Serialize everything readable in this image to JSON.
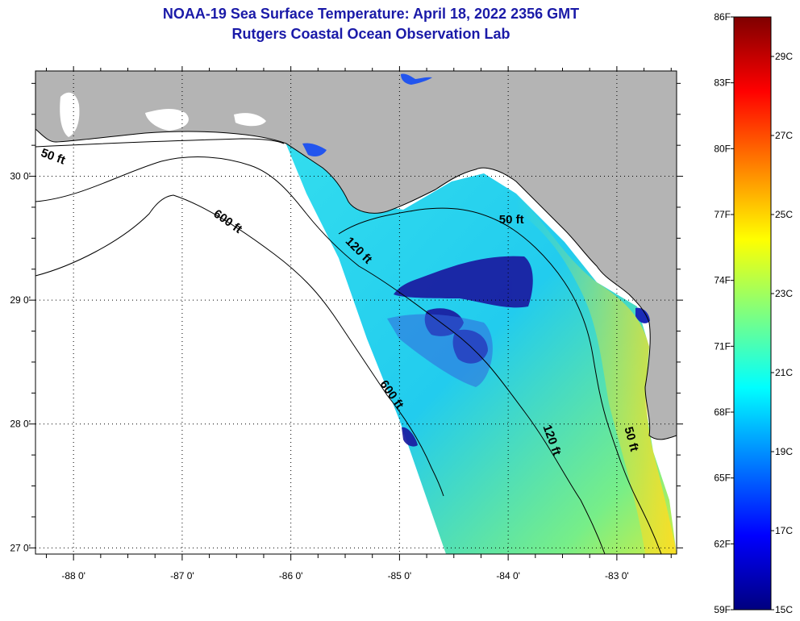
{
  "title": "NOAA-19 Sea Surface Temperature:  April 18, 2022 2356 GMT",
  "subtitle": "Rutgers Coastal Ocean Observation Lab",
  "map": {
    "lon_range": [
      -88.35,
      -82.45
    ],
    "lat_range": [
      26.95,
      30.85
    ],
    "lon_ticks": [
      {
        "value": -88,
        "label": "-88 0'"
      },
      {
        "value": -87,
        "label": "-87 0'"
      },
      {
        "value": -86,
        "label": "-86 0'"
      },
      {
        "value": -85,
        "label": "-85 0'"
      },
      {
        "value": -84,
        "label": "-84 0'"
      },
      {
        "value": -83,
        "label": "-83 0'"
      }
    ],
    "lat_ticks": [
      {
        "value": 30,
        "label": "30 0'"
      },
      {
        "value": 29,
        "label": "29 0'"
      },
      {
        "value": 28,
        "label": "28 0'"
      },
      {
        "value": 27,
        "label": "27 0'"
      }
    ],
    "land_color": "#b4b4b4",
    "ocean_color": "#ffffff",
    "grid": true,
    "contour_labels": [
      {
        "text": "50 ft",
        "lon": -88.2,
        "lat": 30.13,
        "rotate": 20
      },
      {
        "text": "600 ft",
        "lon": -86.6,
        "lat": 29.61,
        "rotate": 35
      },
      {
        "text": "120 ft",
        "lon": -85.4,
        "lat": 29.38,
        "rotate": 45
      },
      {
        "text": "50 ft",
        "lon": -83.97,
        "lat": 29.62,
        "rotate": 0
      },
      {
        "text": "600 ft",
        "lon": -85.1,
        "lat": 28.22,
        "rotate": 55
      },
      {
        "text": "120 ft",
        "lon": -83.63,
        "lat": 27.86,
        "rotate": 70
      },
      {
        "text": "50 ft",
        "lon": -82.9,
        "lat": 27.87,
        "rotate": 75
      }
    ]
  },
  "colorbar": {
    "min_f": 59,
    "max_f": 86,
    "f_labels": [
      "86F",
      "83F",
      "80F",
      "77F",
      "74F",
      "71F",
      "68F",
      "65F",
      "62F",
      "59F"
    ],
    "c_labels": [
      {
        "label": "29C",
        "value_f": 84.2
      },
      {
        "label": "27C",
        "value_f": 80.6
      },
      {
        "label": "25C",
        "value_f": 77.0
      },
      {
        "label": "23C",
        "value_f": 73.4
      },
      {
        "label": "21C",
        "value_f": 69.8
      },
      {
        "label": "19C",
        "value_f": 66.2
      },
      {
        "label": "17C",
        "value_f": 62.6
      },
      {
        "label": "15C",
        "value_f": 59.0
      }
    ],
    "colors": [
      "#00007f",
      "#0000ff",
      "#007fff",
      "#00ffff",
      "#7fff7f",
      "#ffff00",
      "#ff7f00",
      "#ff0000",
      "#7f0000"
    ]
  }
}
